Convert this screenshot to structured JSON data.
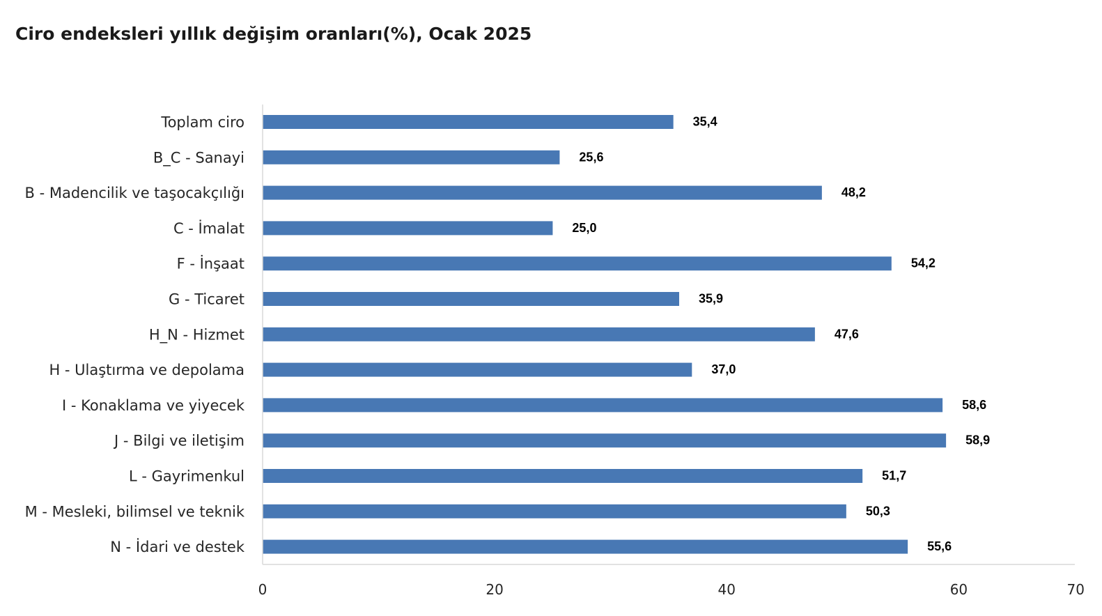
{
  "chart_data": {
    "type": "bar",
    "orientation": "horizontal",
    "title": "Ciro endeksleri yıllık değişim oranları(%), Ocak 2025",
    "categories": [
      "Toplam ciro",
      "B_C - Sanayi",
      "B - Madencilik ve taşocakçılığı",
      "C - İmalat",
      "F - İnşaat",
      "G - Ticaret",
      "H_N - Hizmet",
      "H - Ulaştırma ve depolama",
      "I - Konaklama ve yiyecek",
      "J - Bilgi ve iletişim",
      "L - Gayrimenkul",
      "M - Mesleki, bilimsel ve teknik",
      "N - İdari ve destek"
    ],
    "values": [
      35.4,
      25.6,
      48.2,
      25.0,
      54.2,
      35.9,
      47.6,
      37.0,
      58.6,
      58.9,
      51.7,
      50.3,
      55.6
    ],
    "value_labels": [
      "35,4",
      "25,6",
      "48,2",
      "25,0",
      "54,2",
      "35,9",
      "47,6",
      "37,0",
      "58,6",
      "58,9",
      "51,7",
      "50,3",
      "55,6"
    ],
    "xlim": [
      0,
      70
    ],
    "xticks": [
      0,
      20,
      40,
      60,
      70
    ],
    "xtick_labels": [
      "0",
      "20",
      "40",
      "60",
      "70"
    ],
    "xlabel": "",
    "ylabel": "",
    "grid": false,
    "legend": "none",
    "bar_color": "#4878b4"
  }
}
